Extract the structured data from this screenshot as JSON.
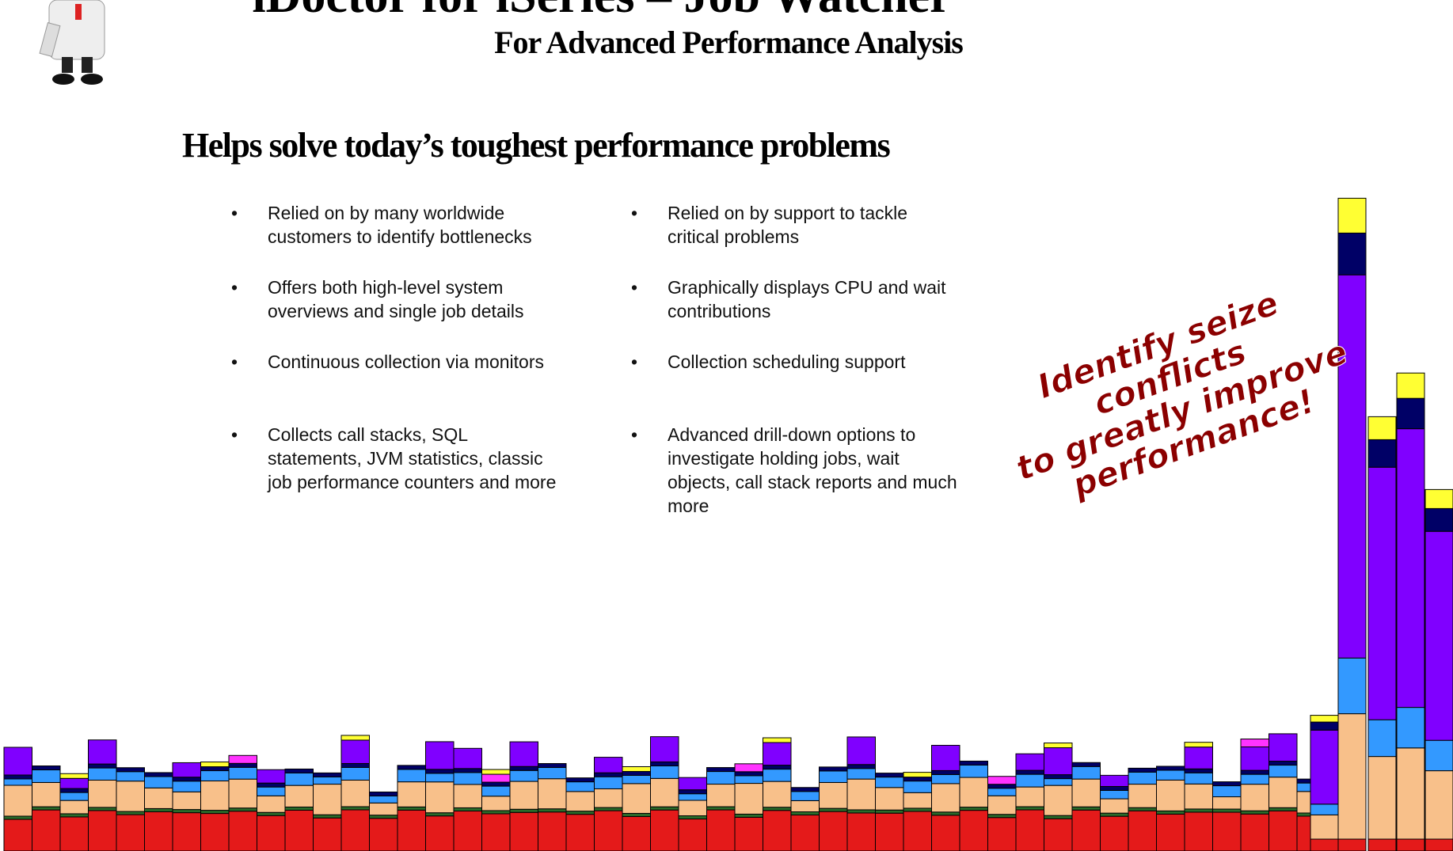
{
  "header": {
    "title": "iDoctor for iSeries – Job Watcher",
    "subtitle": "For Advanced Performance Analysis"
  },
  "heading": "Helps solve today’s toughest performance problems",
  "bullets": {
    "left": [
      "Relied on by many worldwide customers to identify bottlenecks",
      "Offers both high-level system overviews and single job details",
      "Continuous collection via monitors",
      "Collects call stacks, SQL statements, JVM statistics, classic job performance counters and more"
    ],
    "right": [
      "Relied on by support to tackle critical problems",
      "Graphically displays CPU and wait contributions",
      "Collection scheduling support",
      "Advanced drill-down options to investigate holding jobs, wait objects, call stack reports and much more"
    ]
  },
  "callout": [
    "Identify seize conflicts",
    "to greatly improve",
    "performance!"
  ]
}
